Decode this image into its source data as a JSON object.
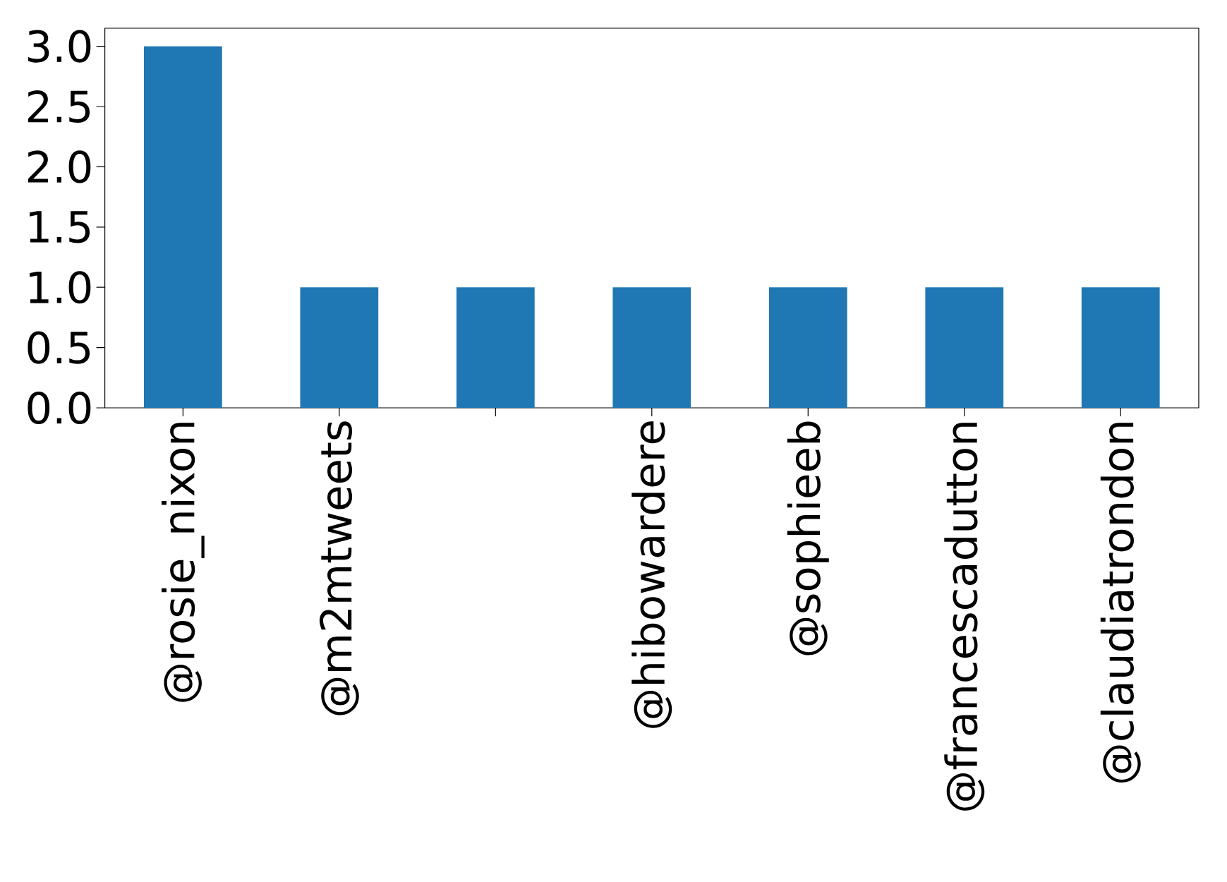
{
  "chart_data": {
    "type": "bar",
    "categories": [
      "@rosie_nixon",
      "@m2mtweets",
      null,
      "@hibowardere",
      "@sophieeb",
      "@francescadutton",
      "@claudiatrondon"
    ],
    "values": [
      3,
      1,
      1,
      1,
      1,
      1,
      1
    ],
    "color": "#1f77b4",
    "ylim": [
      0,
      3.15
    ],
    "yticks": [
      {
        "value": 0,
        "label": "0.0"
      },
      {
        "value": 0.5,
        "label": "0.5"
      },
      {
        "value": 1,
        "label": "1.0"
      },
      {
        "value": 1.5,
        "label": "1.5"
      },
      {
        "value": 2,
        "label": "2.0"
      },
      {
        "value": 2.5,
        "label": "2.5"
      },
      {
        "value": 3,
        "label": "3.0"
      }
    ]
  }
}
